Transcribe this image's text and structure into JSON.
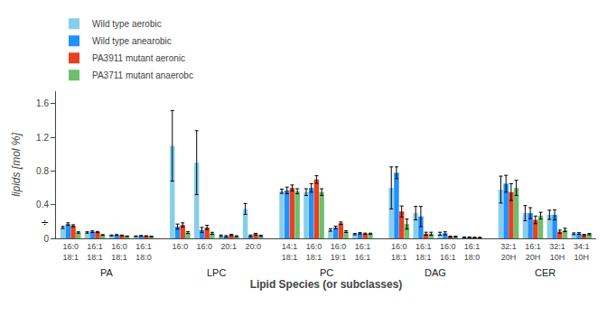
{
  "chart_data": {
    "type": "bar",
    "ylabel": "lipids [mol %]",
    "xlabel": "Lipid Species (or subclasses)",
    "ylim": [
      0,
      1.75
    ],
    "yticks": [
      0,
      0.4,
      0.8,
      1.2,
      1.6
    ],
    "grid": false,
    "legend": "upper left",
    "annotations": [
      "÷"
    ],
    "groups": [
      {
        "label": "PA",
        "categories": [
          "16:0\n18:1",
          "16:1\n18:1",
          "16:0\n18:1",
          "16:1\n18:0"
        ]
      },
      {
        "label": "LPC",
        "categories": [
          "16:0",
          "16:0",
          "20:1",
          "20:0"
        ]
      },
      {
        "label": "PC",
        "categories": [
          "14:1\n18:1",
          "16:0\n18:1",
          "16:0\n19:1",
          "16:1\n16:1"
        ]
      },
      {
        "label": "DAG",
        "categories": [
          "16:0\n18:1",
          "16:1\n18:1",
          "16:0\n16:1",
          "16:1\n18:0"
        ]
      },
      {
        "label": "CER",
        "categories": [
          "32:1\n20H",
          "16:1\n20H",
          "32:1\n10H",
          "34:1\n10H"
        ]
      }
    ],
    "series": [
      {
        "name": "Wild type aerobic",
        "color": "#87CEEB",
        "values": [
          0.13,
          0.07,
          0.035,
          0.025,
          1.1,
          0.9,
          0.03,
          0.35,
          0.56,
          0.55,
          0.1,
          0.05,
          0.6,
          0.3,
          0.055,
          0.012,
          0.58,
          0.3,
          0.28,
          0.055
        ],
        "errors": [
          0.012,
          0.008,
          0.005,
          0.004,
          0.42,
          0.38,
          0.01,
          0.065,
          0.025,
          0.04,
          0.015,
          0.008,
          0.25,
          0.08,
          0.018,
          0.004,
          0.16,
          0.09,
          0.055,
          0.01
        ]
      },
      {
        "name": "Wild type anearobic",
        "color": "#1E90FF",
        "values": [
          0.17,
          0.08,
          0.04,
          0.03,
          0.14,
          0.1,
          0.025,
          0.03,
          0.57,
          0.6,
          0.13,
          0.06,
          0.78,
          0.26,
          0.06,
          0.012,
          0.65,
          0.3,
          0.28,
          0.058
        ],
        "errors": [
          0.015,
          0.009,
          0.005,
          0.004,
          0.03,
          0.03,
          0.008,
          0.01,
          0.04,
          0.05,
          0.015,
          0.008,
          0.07,
          0.12,
          0.018,
          0.004,
          0.1,
          0.065,
          0.06,
          0.01
        ]
      },
      {
        "name": "PA3911 mutant aeronic",
        "color": "#E84020",
        "values": [
          0.15,
          0.075,
          0.035,
          0.028,
          0.16,
          0.13,
          0.04,
          0.05,
          0.6,
          0.7,
          0.18,
          0.055,
          0.32,
          0.055,
          0.02,
          0.01,
          0.55,
          0.22,
          0.08,
          0.04
        ],
        "errors": [
          0.012,
          0.007,
          0.004,
          0.003,
          0.025,
          0.025,
          0.008,
          0.01,
          0.035,
          0.045,
          0.015,
          0.008,
          0.065,
          0.018,
          0.006,
          0.003,
          0.1,
          0.045,
          0.018,
          0.008
        ]
      },
      {
        "name": "PA3711 mutant anaerobc",
        "color": "#6DBF6D",
        "values": [
          0.07,
          0.04,
          0.025,
          0.022,
          0.07,
          0.06,
          0.025,
          0.03,
          0.56,
          0.55,
          0.08,
          0.055,
          0.17,
          0.055,
          0.02,
          0.01,
          0.6,
          0.27,
          0.1,
          0.05
        ],
        "errors": [
          0.008,
          0.005,
          0.003,
          0.003,
          0.012,
          0.012,
          0.006,
          0.008,
          0.03,
          0.04,
          0.01,
          0.007,
          0.06,
          0.018,
          0.005,
          0.003,
          0.09,
          0.04,
          0.02,
          0.008
        ]
      }
    ]
  }
}
